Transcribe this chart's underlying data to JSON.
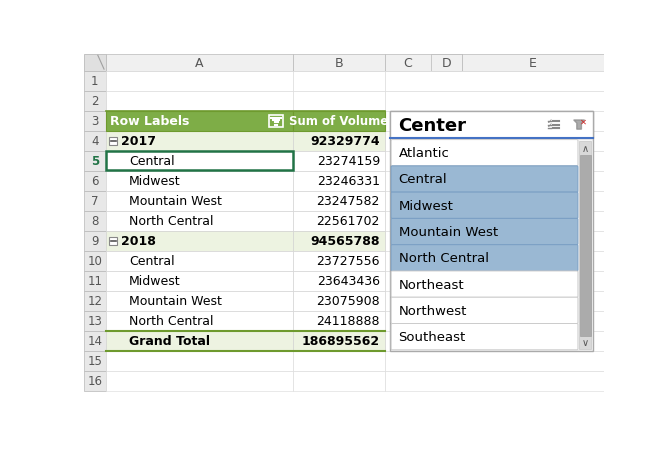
{
  "col_headers": [
    "A",
    "B",
    "C",
    "D",
    "E"
  ],
  "row_labels_header": "Row Labels",
  "sum_volume_header": "Sum of Volume",
  "pivot_rows": [
    {
      "label": "2017",
      "value": "92329774",
      "bold": true,
      "indent": 0,
      "year_row": true
    },
    {
      "label": "Central",
      "value": "23274159",
      "bold": false,
      "indent": 1,
      "year_row": false
    },
    {
      "label": "Midwest",
      "value": "23246331",
      "bold": false,
      "indent": 1,
      "year_row": false
    },
    {
      "label": "Mountain West",
      "value": "23247582",
      "bold": false,
      "indent": 1,
      "year_row": false
    },
    {
      "label": "North Central",
      "value": "22561702",
      "bold": false,
      "indent": 1,
      "year_row": false
    },
    {
      "label": "2018",
      "value": "94565788",
      "bold": true,
      "indent": 0,
      "year_row": true
    },
    {
      "label": "Central",
      "value": "23727556",
      "bold": false,
      "indent": 1,
      "year_row": false
    },
    {
      "label": "Midwest",
      "value": "23643436",
      "bold": false,
      "indent": 1,
      "year_row": false
    },
    {
      "label": "Mountain West",
      "value": "23075908",
      "bold": false,
      "indent": 1,
      "year_row": false
    },
    {
      "label": "North Central",
      "value": "24118888",
      "bold": false,
      "indent": 1,
      "year_row": false
    },
    {
      "label": "Grand Total",
      "value": "186895562",
      "bold": true,
      "indent": 0,
      "year_row": false
    }
  ],
  "header_bg": "#7ead47",
  "header_text": "#ffffff",
  "year_bg": "#edf3e1",
  "normal_bg": "#ffffff",
  "selected_slicer_bg": "#9ab8d3",
  "unselected_slicer_bg": "#ffffff",
  "slicer_title": "Center",
  "slicer_items": [
    {
      "label": "Atlantic",
      "selected": false
    },
    {
      "label": "Central",
      "selected": true
    },
    {
      "label": "Midwest",
      "selected": true
    },
    {
      "label": "Mountain West",
      "selected": true
    },
    {
      "label": "North Central",
      "selected": true
    },
    {
      "label": "Northeast",
      "selected": false
    },
    {
      "label": "Northwest",
      "selected": false
    },
    {
      "label": "Southeast",
      "selected": false
    }
  ],
  "col_header_bg": "#f0f0f0",
  "grid_color": "#d0d0d0",
  "cell_selected_border": "#217346",
  "gutter_selected_color": "#217346",
  "gutter_bg": "#e8e8e8",
  "green_border": "#6e9a2e"
}
